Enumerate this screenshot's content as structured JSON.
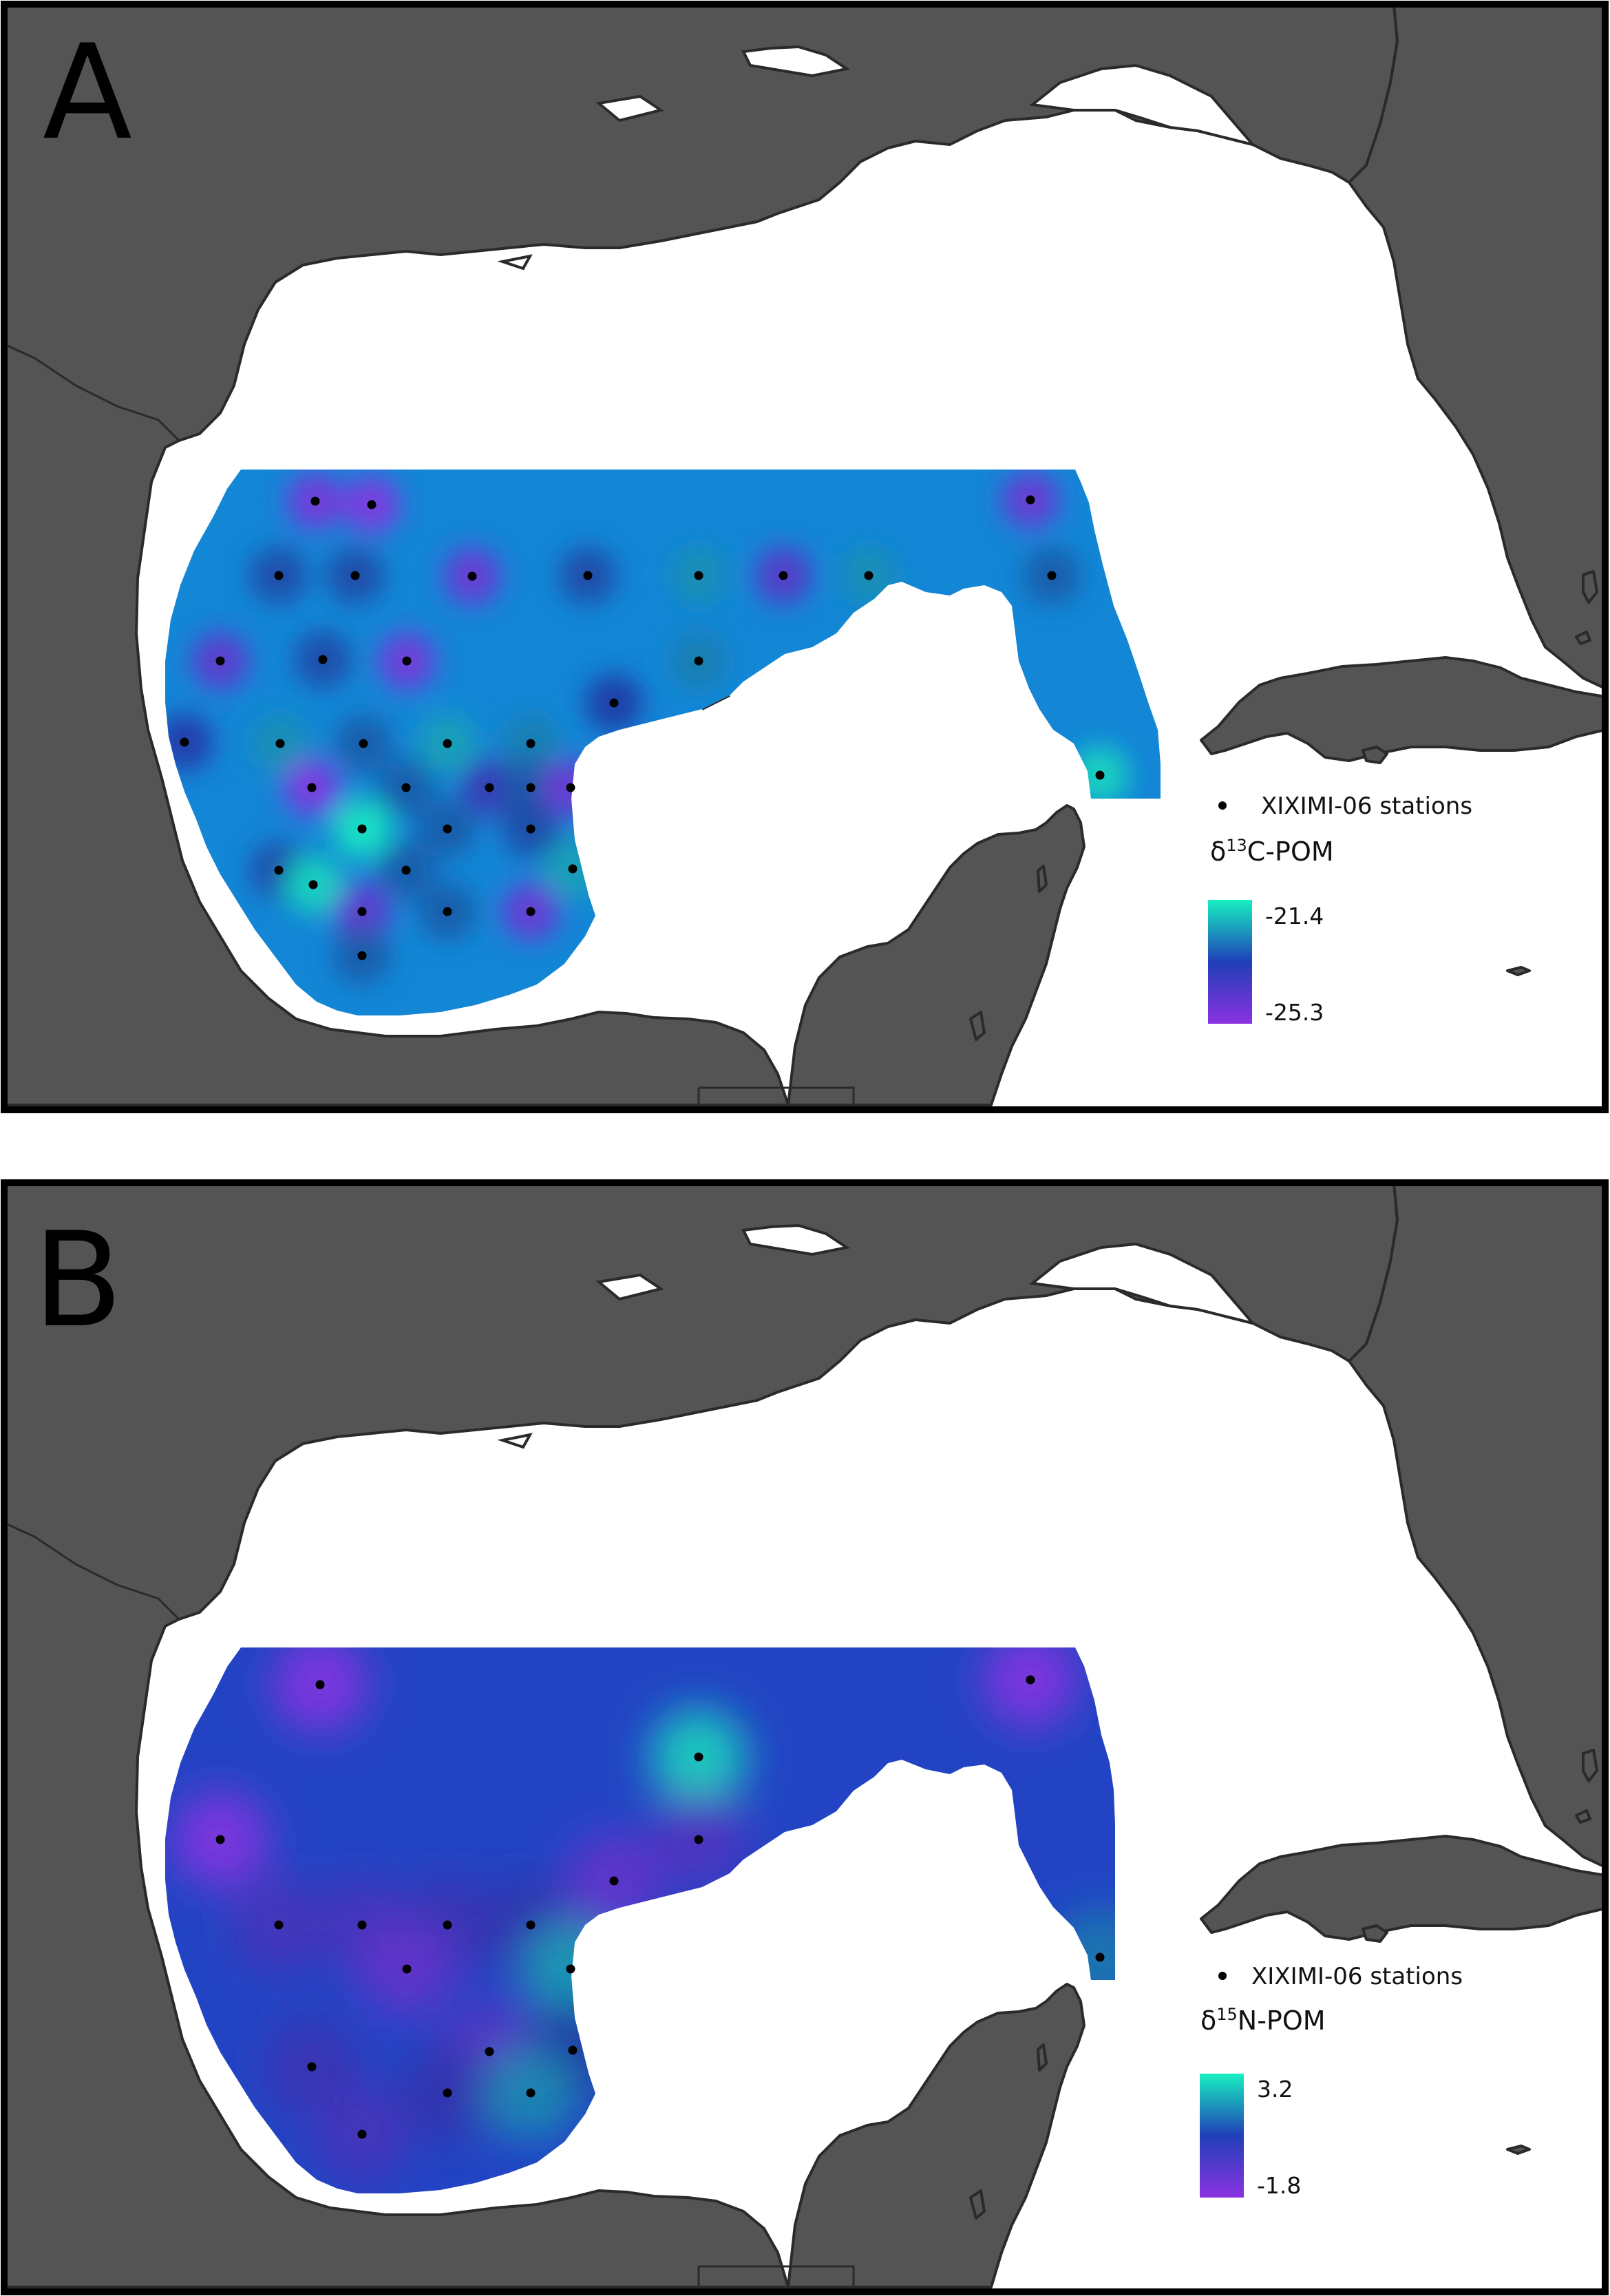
{
  "figure": {
    "colors": {
      "land": "#545454",
      "coast": "#2a2a2a",
      "frame": "#000000",
      "scale_low": "#8a32e0",
      "scale_mid": "#1f3fb8",
      "scale_high": "#18f0c0"
    },
    "panels": [
      {
        "letter": "A",
        "legend_station": "XIXIMI-06 stations",
        "variable_base": "δ",
        "variable_sup": "13",
        "variable_rest": "C-POM",
        "scale_max": "-21.4",
        "scale_min": "-25.3",
        "stations": [
          [
            458,
            728,
            0.05
          ],
          [
            540,
            733,
            0.0
          ],
          [
            405,
            836,
            0.55
          ],
          [
            516,
            836,
            0.55
          ],
          [
            686,
            837,
            0.1
          ],
          [
            854,
            836,
            0.55
          ],
          [
            1015,
            836,
            0.75
          ],
          [
            1138,
            836,
            0.2
          ],
          [
            1262,
            836,
            0.75
          ],
          [
            1528,
            836,
            0.6
          ],
          [
            1497,
            726,
            0.1
          ],
          [
            320,
            960,
            0.15
          ],
          [
            469,
            958,
            0.55
          ],
          [
            591,
            960,
            0.05
          ],
          [
            1015,
            960,
            0.7
          ],
          [
            892,
            1021,
            0.5
          ],
          [
            268,
            1078,
            0.45
          ],
          [
            407,
            1080,
            0.75
          ],
          [
            528,
            1080,
            0.6
          ],
          [
            650,
            1080,
            0.8
          ],
          [
            771,
            1080,
            0.7
          ],
          [
            453,
            1144,
            0.0
          ],
          [
            590,
            1144,
            0.6
          ],
          [
            711,
            1144,
            0.35
          ],
          [
            771,
            1144,
            0.6
          ],
          [
            829,
            1144,
            0.1
          ],
          [
            526,
            1204,
            1.0
          ],
          [
            650,
            1204,
            0.6
          ],
          [
            771,
            1204,
            0.55
          ],
          [
            405,
            1264,
            0.55
          ],
          [
            455,
            1285,
            0.95
          ],
          [
            590,
            1264,
            0.6
          ],
          [
            832,
            1262,
            0.8
          ],
          [
            526,
            1324,
            0.15
          ],
          [
            650,
            1324,
            0.6
          ],
          [
            771,
            1324,
            0.1
          ],
          [
            526,
            1388,
            0.6
          ],
          [
            1598,
            1126,
            0.95
          ]
        ]
      },
      {
        "letter": "B",
        "legend_station": "XIXIMI-06 stations",
        "variable_base": "δ",
        "variable_sup": "15",
        "variable_rest": "N-POM",
        "scale_max": "3.2",
        "scale_min": "-1.8",
        "stations": [
          [
            465,
            2447,
            0.0
          ],
          [
            1497,
            2440,
            0.0
          ],
          [
            1015,
            2552,
            0.95
          ],
          [
            320,
            2672,
            0.0
          ],
          [
            1015,
            2672,
            0.25
          ],
          [
            892,
            2732,
            0.15
          ],
          [
            405,
            2796,
            0.3
          ],
          [
            526,
            2796,
            0.3
          ],
          [
            650,
            2796,
            0.35
          ],
          [
            771,
            2796,
            0.4
          ],
          [
            591,
            2860,
            0.15
          ],
          [
            829,
            2860,
            0.8
          ],
          [
            711,
            2980,
            0.2
          ],
          [
            832,
            2978,
            0.5
          ],
          [
            453,
            3002,
            0.35
          ],
          [
            650,
            3040,
            0.4
          ],
          [
            771,
            3040,
            0.75
          ],
          [
            526,
            3100,
            0.3
          ],
          [
            1598,
            2843,
            0.7
          ]
        ]
      }
    ]
  }
}
